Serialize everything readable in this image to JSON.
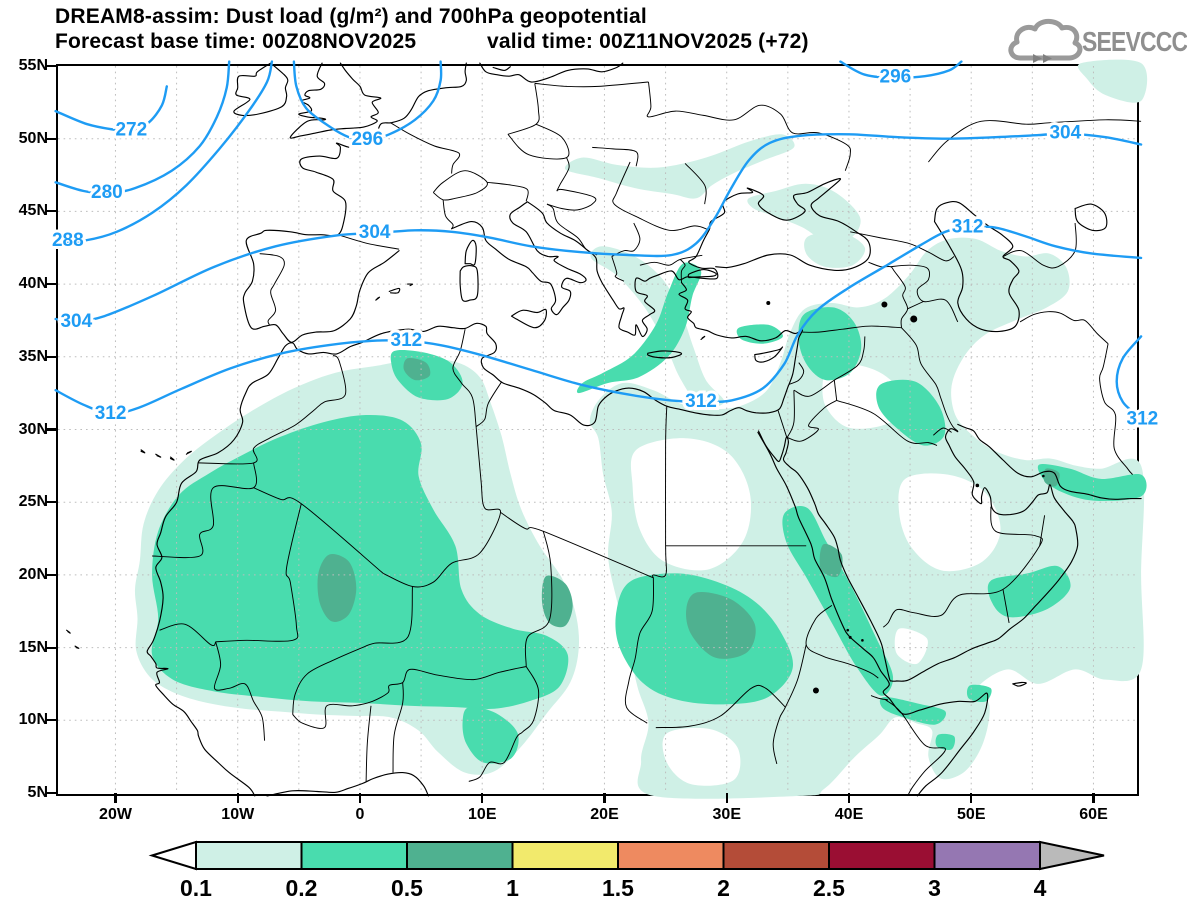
{
  "header": {
    "title": "DREAM8-assim: Dust load (g/m²) and 700hPa geopotential",
    "forecast_base": "Forecast base time: 00Z08NOV2025",
    "valid_time": "valid time: 00Z11NOV2025 (+72)"
  },
  "logo": {
    "text": "SEEVCCC",
    "color": "#8f8f8f"
  },
  "axes": {
    "lat_ticks": [
      "55N",
      "50N",
      "45N",
      "40N",
      "35N",
      "30N",
      "25N",
      "20N",
      "15N",
      "10N",
      "5N"
    ],
    "lon_ticks": [
      "20W",
      "10W",
      "0",
      "10E",
      "20E",
      "30E",
      "40E",
      "50E",
      "60E"
    ]
  },
  "colorbar": {
    "tick_labels": [
      "0.1",
      "0.2",
      "0.5",
      "1",
      "1.5",
      "2",
      "2.5",
      "3",
      "4"
    ],
    "segment_colors": [
      "#cff0e6",
      "#49dcae",
      "#4fb190",
      "#f2ea6c",
      "#ee8a60",
      "#b44c38",
      "#9a0e33",
      "#9577b2"
    ],
    "under_arrow_color": "#ffffff",
    "over_arrow_color": "#bababa",
    "outline_color": "#000000"
  },
  "chart_data": {
    "type": "heatmap",
    "subtype": "geographic filled-contour (dust load) + line contours (geopotential)",
    "title": "DREAM8-assim: Dust load (g/m²) and 700hPa geopotential",
    "subtitle": "Forecast base time: 00Z08NOV2025   valid time: 00Z11NOV2025 (+72)",
    "region": "North Africa, Europe and Middle East, approx. 25W-64E, 5N-55N",
    "xticks": [
      "20W",
      "10W",
      "0",
      "10E",
      "20E",
      "30E",
      "40E",
      "50E",
      "60E"
    ],
    "yticks": [
      "5N",
      "10N",
      "15N",
      "20N",
      "25N",
      "30N",
      "35N",
      "40N",
      "45N",
      "50N",
      "55N"
    ],
    "grid": "dotted, every 5 degrees",
    "fill_variable": "dust load",
    "fill_units": "g/m²",
    "fill_levels": [
      0.1,
      0.2,
      0.5,
      1,
      1.5,
      2,
      2.5,
      3,
      4
    ],
    "fill_palette": [
      "#cff0e6",
      "#49dcae",
      "#4fb190",
      "#f2ea6c",
      "#ee8a60",
      "#b44c38",
      "#9a0e33",
      "#9577b2"
    ],
    "underflow_color": "#ffffff",
    "overflow_color": "#bababa",
    "max_shaded_level_on_map": "0.5–1 g/m²",
    "dust_maxima_regions": [
      "eastern Mali",
      "Niger–Chad border",
      "Sudan (Kordofan/Darfur)",
      "NE Algeria–Tunisia",
      "Saudi Red Sea coast near Jeddah",
      "Strait of Hormuz"
    ],
    "line_variable": "700 hPa geopotential",
    "line_color": "#1e9cf4",
    "contour_levels_visible": [
      272,
      280,
      288,
      296,
      304,
      312
    ],
    "line_labels": [
      {
        "value": 272,
        "lon_deg": -18.7,
        "lat_deg": 50.55,
        "clipped": false
      },
      {
        "value": 280,
        "lon_deg": -20.7,
        "lat_deg": 46.25,
        "clipped": false
      },
      {
        "value": 288,
        "lon_deg": -23.9,
        "lat_deg": 42.95,
        "clipped": true
      },
      {
        "value": 296,
        "lon_deg": 0.6,
        "lat_deg": 49.9,
        "clipped": false
      },
      {
        "value": 296,
        "lon_deg": 43.8,
        "lat_deg": 54.2,
        "clipped": false
      },
      {
        "value": 304,
        "lon_deg": -23.2,
        "lat_deg": 37.4,
        "clipped": false
      },
      {
        "value": 304,
        "lon_deg": 1.2,
        "lat_deg": 43.5,
        "clipped": false
      },
      {
        "value": 304,
        "lon_deg": 57.7,
        "lat_deg": 50.35,
        "clipped": false
      },
      {
        "value": 312,
        "lon_deg": -20.4,
        "lat_deg": 31.05,
        "clipped": false
      },
      {
        "value": 312,
        "lon_deg": 3.8,
        "lat_deg": 36.1,
        "clipped": false
      },
      {
        "value": 312,
        "lon_deg": 27.9,
        "lat_deg": 31.9,
        "clipped": false
      },
      {
        "value": 312,
        "lon_deg": 49.7,
        "lat_deg": 43.9,
        "clipped": false
      },
      {
        "value": 312,
        "lon_deg": 64.0,
        "lat_deg": 30.7,
        "clipped": true
      }
    ]
  }
}
